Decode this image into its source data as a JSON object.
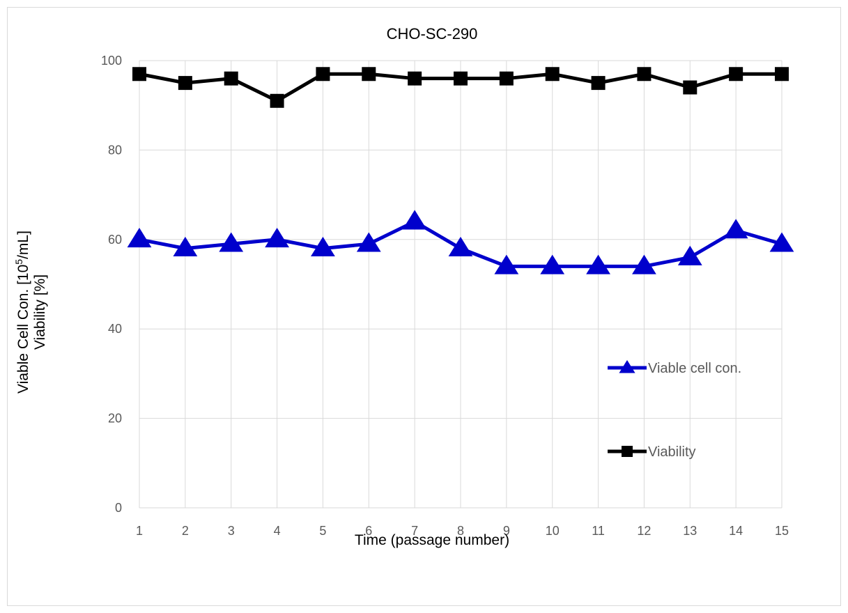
{
  "chart_data": {
    "type": "line",
    "title": "CHO-SC-290",
    "xlabel": "Time  (passage number)",
    "ylabel_line1_prefix": "Viable Cell Con.  [10",
    "ylabel_line1_sup": "5",
    "ylabel_line1_suffix": "/mL]",
    "ylabel_line2": "Viability  [%]",
    "categories": [
      "1",
      "2",
      "3",
      "4",
      "5",
      "6",
      "7",
      "8",
      "9",
      "10",
      "11",
      "12",
      "13",
      "14",
      "15"
    ],
    "y_ticks": [
      "0",
      "20",
      "40",
      "60",
      "80",
      "100"
    ],
    "ylim": [
      0,
      100
    ],
    "grid": true,
    "legend_position": "right",
    "series": [
      {
        "name": "Viable cell con.",
        "marker": "triangle",
        "color": "#0000cc",
        "values": [
          60,
          58,
          59,
          60,
          58,
          59,
          64,
          58,
          54,
          54,
          54,
          54,
          56,
          62,
          59
        ]
      },
      {
        "name": "Viability",
        "marker": "square",
        "color": "#000000",
        "values": [
          97,
          95,
          96,
          91,
          97,
          97,
          96,
          96,
          96,
          97,
          95,
          97,
          94,
          97,
          97
        ]
      }
    ]
  }
}
